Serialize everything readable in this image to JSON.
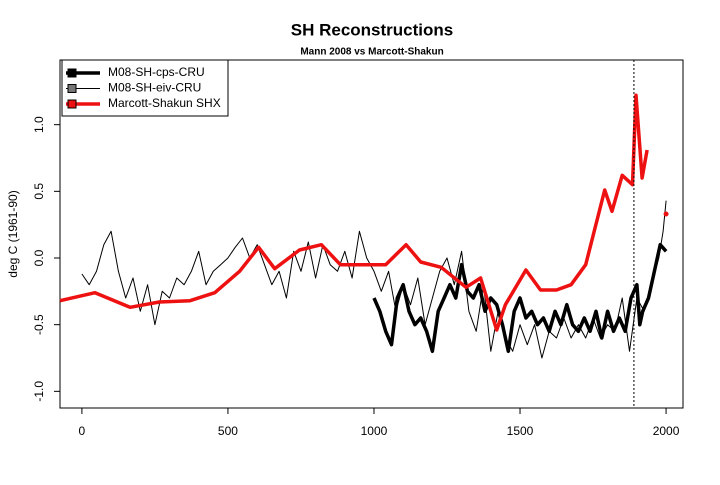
{
  "chart_data": {
    "type": "line",
    "title": "SH Reconstructions",
    "subtitle": "Mann 2008 vs Marcott-Shakun",
    "ylabel": "deg C (1961-90)",
    "xlim": [
      -75,
      2058
    ],
    "ylim": [
      -1.125,
      1.485
    ],
    "xticks": [
      0,
      500,
      1000,
      1500,
      2000
    ],
    "yticks": [
      {
        "value": -1,
        "label": "-1.0"
      },
      {
        "value": -0.5,
        "label": "-0.5"
      },
      {
        "value": 0,
        "label": "0.0"
      },
      {
        "value": 0.5,
        "label": "0.5"
      },
      {
        "value": 1,
        "label": "1.0"
      }
    ],
    "vlines": [
      1890
    ],
    "legend": "top-left",
    "series": [
      {
        "name": "M08-SH-cps-CRU",
        "color": "#000000",
        "width": 3.5,
        "x": [
          1000,
          1020,
          1040,
          1060,
          1080,
          1100,
          1120,
          1140,
          1160,
          1180,
          1200,
          1220,
          1240,
          1260,
          1280,
          1300,
          1320,
          1340,
          1360,
          1380,
          1400,
          1420,
          1440,
          1460,
          1480,
          1500,
          1520,
          1540,
          1560,
          1580,
          1600,
          1620,
          1640,
          1660,
          1680,
          1700,
          1720,
          1740,
          1760,
          1780,
          1800,
          1820,
          1840,
          1860,
          1880,
          1900,
          1910,
          1920,
          1940,
          1960,
          1980,
          2000
        ],
        "values": [
          -0.3,
          -0.4,
          -0.55,
          -0.65,
          -0.3,
          -0.2,
          -0.4,
          -0.5,
          -0.45,
          -0.55,
          -0.7,
          -0.4,
          -0.3,
          -0.2,
          -0.3,
          -0.05,
          -0.25,
          -0.3,
          -0.2,
          -0.4,
          -0.3,
          -0.35,
          -0.5,
          -0.7,
          -0.4,
          -0.3,
          -0.45,
          -0.4,
          -0.5,
          -0.45,
          -0.55,
          -0.4,
          -0.5,
          -0.35,
          -0.5,
          -0.55,
          -0.45,
          -0.55,
          -0.4,
          -0.6,
          -0.4,
          -0.55,
          -0.45,
          -0.55,
          -0.3,
          -0.2,
          -0.5,
          -0.4,
          -0.3,
          -0.1,
          0.1,
          0.05
        ]
      },
      {
        "name": "M08-SH-eiv-CRU",
        "color": "#000000",
        "width": 1,
        "x": [
          0,
          25,
          50,
          75,
          100,
          125,
          150,
          175,
          200,
          225,
          250,
          275,
          300,
          325,
          350,
          375,
          400,
          425,
          450,
          475,
          500,
          525,
          550,
          575,
          600,
          625,
          650,
          675,
          700,
          725,
          750,
          775,
          800,
          825,
          850,
          875,
          900,
          925,
          950,
          975,
          1000,
          1025,
          1050,
          1075,
          1100,
          1125,
          1150,
          1175,
          1200,
          1225,
          1250,
          1275,
          1300,
          1325,
          1350,
          1375,
          1400,
          1425,
          1450,
          1475,
          1500,
          1525,
          1550,
          1575,
          1600,
          1625,
          1650,
          1675,
          1700,
          1725,
          1750,
          1775,
          1800,
          1825,
          1850,
          1875,
          1900,
          1925,
          1950,
          1975,
          1990,
          2000
        ],
        "values": [
          -0.12,
          -0.2,
          -0.1,
          0.1,
          0.2,
          -0.1,
          -0.3,
          -0.15,
          -0.4,
          -0.2,
          -0.5,
          -0.25,
          -0.3,
          -0.15,
          -0.2,
          -0.1,
          0.05,
          -0.2,
          -0.1,
          -0.05,
          0,
          0.08,
          0.15,
          0,
          0.1,
          -0.05,
          -0.2,
          -0.1,
          -0.3,
          0.05,
          -0.1,
          0.12,
          -0.15,
          0.1,
          -0.05,
          -0.1,
          0.05,
          -0.15,
          0.2,
          0,
          -0.1,
          -0.25,
          -0.1,
          -0.4,
          -0.2,
          -0.35,
          -0.15,
          -0.5,
          -0.3,
          -0.1,
          0,
          -0.2,
          0.05,
          -0.4,
          -0.55,
          -0.2,
          -0.7,
          -0.4,
          -0.6,
          -0.7,
          -0.5,
          -0.65,
          -0.5,
          -0.75,
          -0.55,
          -0.6,
          -0.45,
          -0.6,
          -0.5,
          -0.6,
          -0.45,
          -0.6,
          -0.5,
          -0.55,
          -0.3,
          -0.7,
          -0.3,
          -0.4,
          -0.2,
          0,
          0.2,
          0.43
        ]
      },
      {
        "name": "Marcott-Shakun SHX",
        "color": "#ee1111",
        "width": 3.5,
        "x": [
          -75,
          45,
          165,
          265,
          370,
          455,
          540,
          605,
          660,
          745,
          820,
          885,
          1040,
          1110,
          1160,
          1230,
          1315,
          1365,
          1420,
          1450,
          1520,
          1570,
          1625,
          1675,
          1725,
          1790,
          1815,
          1850,
          1885,
          1897,
          1918,
          1935,
          1965,
          2000
        ],
        "values": [
          -0.32,
          -0.26,
          -0.37,
          -0.33,
          -0.32,
          -0.26,
          -0.1,
          0.08,
          -0.08,
          0.06,
          0.1,
          -0.05,
          -0.05,
          0.1,
          -0.03,
          -0.07,
          -0.22,
          -0.15,
          -0.54,
          -0.35,
          -0.09,
          -0.24,
          -0.24,
          -0.2,
          -0.05,
          0.51,
          0.35,
          0.62,
          0.55,
          1.22,
          0.6,
          0.81,
          null,
          0.33
        ]
      }
    ]
  }
}
